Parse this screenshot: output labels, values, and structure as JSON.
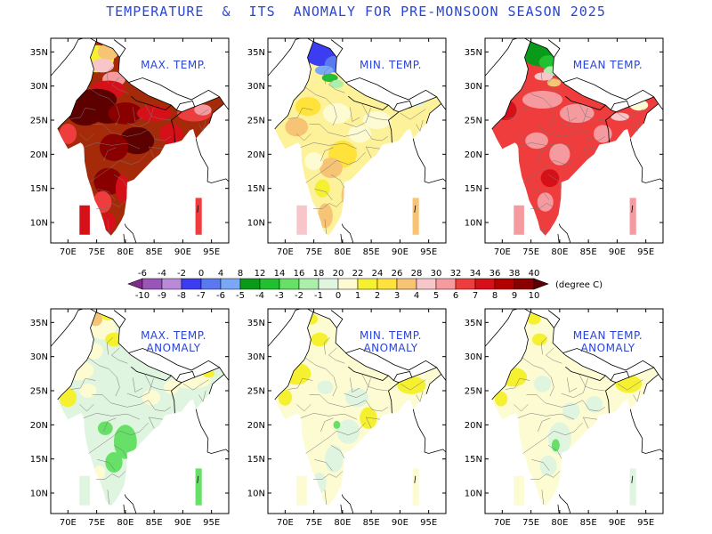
{
  "title": "TEMPERATURE  &  ITS  ANOMALY FOR PRE-MONSOON SEASON 2025",
  "lat_ticks": [
    "35N",
    "30N",
    "25N",
    "20N",
    "15N",
    "10N"
  ],
  "lon_ticks": [
    "70E",
    "75E",
    "80E",
    "85E",
    "90E",
    "95E"
  ],
  "panels": [
    {
      "label": [
        "MAX. TEMP."
      ],
      "scheme": "max"
    },
    {
      "label": [
        "MIN. TEMP."
      ],
      "scheme": "min"
    },
    {
      "label": [
        "MEAN TEMP."
      ],
      "scheme": "mean"
    },
    {
      "label": [
        "MAX. TEMP.",
        "ANOMALY"
      ],
      "scheme": "amax"
    },
    {
      "label": [
        "MIN. TEMP.",
        "ANOMALY"
      ],
      "scheme": "amin"
    },
    {
      "label": [
        "MEAN TEMP.",
        "ANOMALY"
      ],
      "scheme": "amean"
    }
  ],
  "colorbar": {
    "temp_labels": [
      "-6",
      "-4",
      "-2",
      "0",
      "4",
      "8",
      "12",
      "14",
      "16",
      "18",
      "20",
      "22",
      "24",
      "26",
      "28",
      "30",
      "32",
      "34",
      "36",
      "38",
      "40"
    ],
    "anomaly_labels": [
      "-10",
      "-9",
      "-8",
      "-7",
      "-6",
      "-5",
      "-4",
      "-3",
      "-2",
      "-1",
      "0",
      "1",
      "2",
      "3",
      "4",
      "5",
      "6",
      "7",
      "8",
      "9",
      "10"
    ],
    "unit": "(degree C)",
    "colors": [
      "#7e2d8e",
      "#9a55b8",
      "#b88ad8",
      "#3c3cf0",
      "#5a78f0",
      "#7aa8f6",
      "#0a9a1a",
      "#20c030",
      "#66e066",
      "#aaf0aa",
      "#dff5df",
      "#fdfbd2",
      "#f5f030",
      "#ffe23a",
      "#f7c374",
      "#f8c6c9",
      "#f59a9e",
      "#ef3c3c",
      "#d61018",
      "#b30000",
      "#8a0000",
      "#5c0000"
    ]
  }
}
